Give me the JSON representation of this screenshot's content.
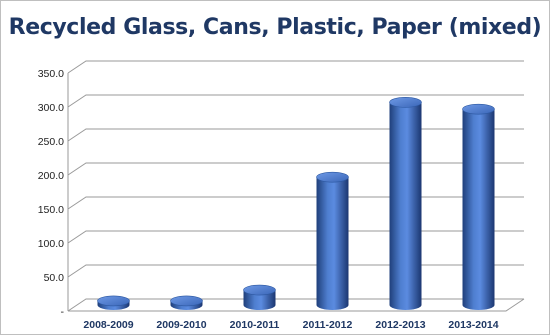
{
  "chart_data": {
    "type": "bar",
    "style": "3d-cylinder",
    "title": "Recycled Glass, Cans, Plastic, Paper (mixed)",
    "categories": [
      "2008-2009",
      "2009-2010",
      "2010-2011",
      "2011-2012",
      "2012-2013",
      "2013-2014"
    ],
    "values": [
      6,
      6,
      22,
      188,
      298,
      288
    ],
    "yticks": [
      "-",
      "50.0",
      "100.0",
      "150.0",
      "200.0",
      "250.0",
      "300.0",
      "350.0"
    ],
    "ylim": [
      0,
      350
    ],
    "grid": true,
    "legend": "none",
    "bar_color": "#4472c4"
  }
}
